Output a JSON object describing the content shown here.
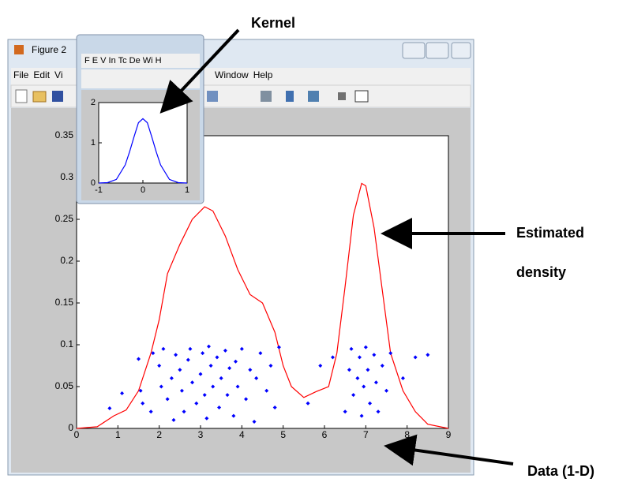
{
  "main_window": {
    "title": "Figure 2",
    "menu_left": [
      "File",
      "Edit",
      "Vi"
    ],
    "menu_right": [
      "Window",
      "Help"
    ]
  },
  "kernel_window": {
    "menu": "F E V In Tc De Wi H"
  },
  "annotations": {
    "kernel": "Kernel",
    "estimated": "Estimated",
    "density": "density",
    "data": "Data (1-D)"
  },
  "chart_data": [
    {
      "type": "line",
      "xlim": [
        0,
        9
      ],
      "ylim": [
        0,
        0.35
      ],
      "xticks": [
        0,
        1,
        2,
        3,
        4,
        5,
        6,
        7,
        8,
        9
      ],
      "yticks": [
        0,
        0.05,
        0.1,
        0.15,
        0.2,
        0.25,
        0.3,
        0.35
      ],
      "series": [
        {
          "type": "line",
          "color": "#ff0000",
          "x": [
            0,
            0.5,
            0.9,
            1.2,
            1.5,
            1.8,
            2.0,
            2.2,
            2.5,
            2.8,
            3.1,
            3.3,
            3.6,
            3.9,
            4.2,
            4.5,
            4.8,
            5.0,
            5.2,
            5.5,
            5.8,
            6.1,
            6.3,
            6.5,
            6.7,
            6.9,
            7.0,
            7.2,
            7.4,
            7.6,
            7.9,
            8.2,
            8.5,
            9
          ],
          "y": [
            0,
            0.002,
            0.015,
            0.022,
            0.045,
            0.09,
            0.13,
            0.185,
            0.22,
            0.25,
            0.265,
            0.26,
            0.23,
            0.19,
            0.16,
            0.15,
            0.115,
            0.075,
            0.05,
            0.037,
            0.044,
            0.05,
            0.09,
            0.17,
            0.255,
            0.293,
            0.29,
            0.24,
            0.165,
            0.09,
            0.045,
            0.02,
            0.005,
            0
          ]
        },
        {
          "type": "scatter",
          "color": "#0000ff",
          "x": [
            0.8,
            1.1,
            1.5,
            1.55,
            1.6,
            1.8,
            1.85,
            2.0,
            2.05,
            2.1,
            2.2,
            2.3,
            2.35,
            2.4,
            2.5,
            2.55,
            2.6,
            2.7,
            2.75,
            2.8,
            2.9,
            3.0,
            3.05,
            3.1,
            3.15,
            3.2,
            3.25,
            3.3,
            3.4,
            3.45,
            3.5,
            3.6,
            3.65,
            3.7,
            3.8,
            3.85,
            3.9,
            4.0,
            4.1,
            4.2,
            4.3,
            4.35,
            4.45,
            4.6,
            4.7,
            4.8,
            4.9,
            5.6,
            5.9,
            6.2,
            6.5,
            6.6,
            6.65,
            6.7,
            6.8,
            6.85,
            6.9,
            6.95,
            7.0,
            7.05,
            7.1,
            7.2,
            7.25,
            7.3,
            7.4,
            7.5,
            7.6,
            7.9,
            8.2,
            8.5
          ],
          "y": [
            0.024,
            0.042,
            0.083,
            0.045,
            0.03,
            0.02,
            0.09,
            0.075,
            0.05,
            0.095,
            0.035,
            0.06,
            0.01,
            0.088,
            0.07,
            0.045,
            0.02,
            0.082,
            0.095,
            0.055,
            0.03,
            0.065,
            0.09,
            0.04,
            0.012,
            0.098,
            0.075,
            0.05,
            0.085,
            0.025,
            0.06,
            0.093,
            0.04,
            0.072,
            0.015,
            0.08,
            0.05,
            0.095,
            0.035,
            0.07,
            0.008,
            0.06,
            0.09,
            0.045,
            0.075,
            0.025,
            0.097,
            0.03,
            0.075,
            0.085,
            0.02,
            0.07,
            0.095,
            0.04,
            0.06,
            0.085,
            0.015,
            0.05,
            0.097,
            0.07,
            0.03,
            0.088,
            0.055,
            0.02,
            0.075,
            0.045,
            0.09,
            0.06,
            0.085,
            0.088
          ]
        }
      ]
    },
    {
      "type": "line",
      "xlim": [
        -1,
        1
      ],
      "ylim": [
        0,
        2
      ],
      "xticks": [
        -1,
        0,
        1
      ],
      "yticks": [
        0,
        1,
        2
      ],
      "series": [
        {
          "type": "line",
          "color": "#0000ff",
          "x": [
            -1,
            -0.8,
            -0.6,
            -0.4,
            -0.3,
            -0.2,
            -0.1,
            0,
            0.1,
            0.2,
            0.3,
            0.4,
            0.6,
            0.8,
            1
          ],
          "y": [
            0,
            0.01,
            0.09,
            0.45,
            0.78,
            1.15,
            1.5,
            1.6,
            1.5,
            1.15,
            0.78,
            0.45,
            0.09,
            0.01,
            0
          ]
        }
      ]
    }
  ]
}
